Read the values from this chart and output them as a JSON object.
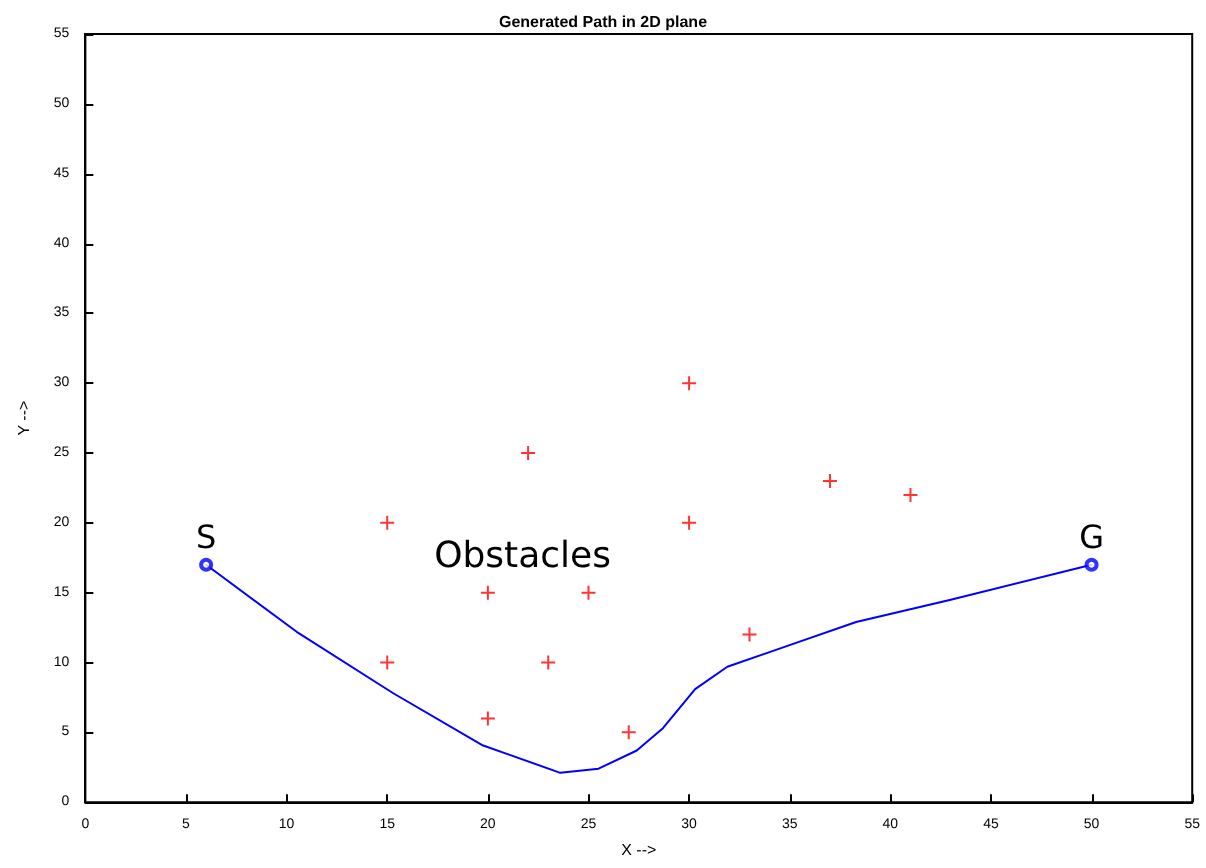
{
  "chart_data": {
    "type": "line",
    "title": "Generated Path in 2D plane",
    "xlabel": "X -->",
    "ylabel": "Y -->",
    "xlim": [
      0,
      55
    ],
    "ylim": [
      0,
      55
    ],
    "xticks": [
      0,
      5,
      10,
      15,
      20,
      25,
      30,
      35,
      40,
      45,
      50,
      55
    ],
    "yticks": [
      0,
      5,
      10,
      15,
      20,
      25,
      30,
      35,
      40,
      45,
      50,
      55
    ],
    "grid": false,
    "series": [
      {
        "color": "#0000ff",
        "marker": "none",
        "line_style": "solid",
        "x": [
          6,
          10.5,
          15.3,
          19.7,
          23.6,
          25.5,
          27.4,
          28.7,
          30.3,
          31.9,
          35.1,
          38.3,
          43,
          50
        ],
        "values": [
          17,
          12.2,
          7.8,
          4.1,
          2.1,
          2.4,
          3.7,
          5.3,
          8.1,
          9.7,
          11.3,
          12.9,
          14.5,
          17
        ]
      },
      {
        "type": "scatter",
        "color": "#0000ff",
        "marker": "circle",
        "x": [
          6,
          50
        ],
        "values": [
          17,
          17
        ]
      },
      {
        "type": "scatter",
        "color": "#ff0000",
        "marker": "cross",
        "x": [
          15,
          15,
          20,
          20,
          22,
          23,
          25,
          27,
          30,
          30,
          33,
          37,
          41
        ],
        "values": [
          20,
          10,
          15,
          6,
          25,
          10,
          15,
          5,
          30,
          20,
          12,
          23,
          22
        ]
      }
    ],
    "annotations": [
      {
        "text": "S",
        "x": 6,
        "y": 17
      },
      {
        "text": "G",
        "x": 50,
        "y": 17
      },
      "Obstacles"
    ]
  }
}
